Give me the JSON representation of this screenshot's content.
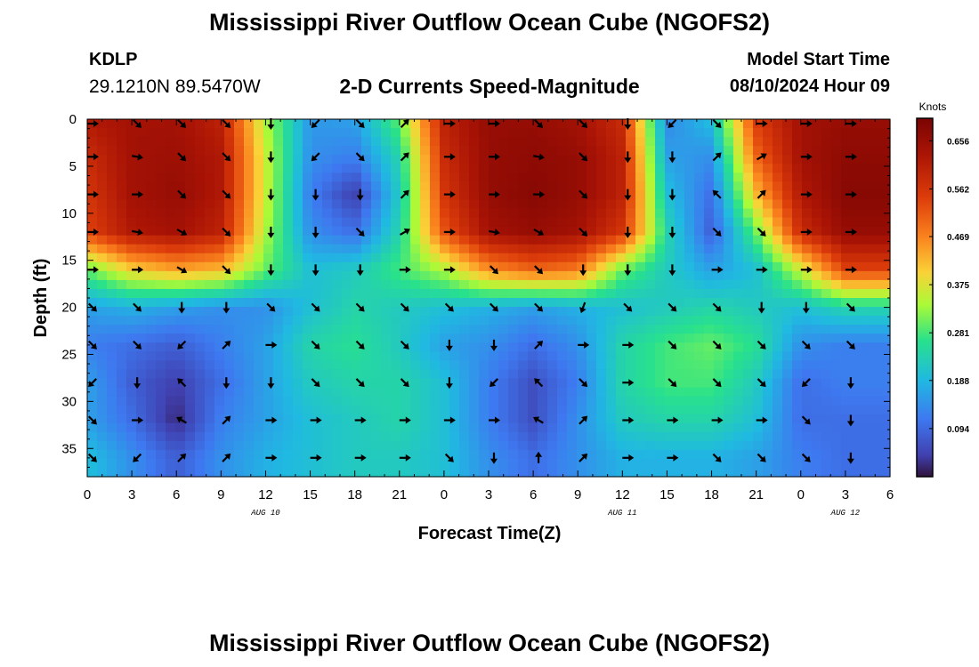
{
  "header": {
    "title": "Mississippi River Outflow Ocean Cube (NGOFS2)",
    "station_id": "KDLP",
    "coords": "29.1210N  89.5470W",
    "subtitle": "2-D Currents Speed-Magnitude",
    "model_start_label": "Model Start Time",
    "model_start_value": "08/10/2024 Hour 09"
  },
  "footer": {
    "title": "Mississippi River Outflow Ocean Cube (NGOFS2)"
  },
  "chart_data": {
    "type": "heatmap",
    "title": "2-D Currents Speed-Magnitude",
    "xlabel": "Forecast Time(Z)",
    "ylabel": "Depth (ft)",
    "x_unit": "hours from 0Z AUG 10",
    "xlim": [
      0,
      54
    ],
    "ylim": [
      0,
      38
    ],
    "y_inverted": true,
    "x_ticks": [
      0,
      3,
      6,
      9,
      12,
      15,
      18,
      21,
      24,
      27,
      30,
      33,
      36,
      39,
      42,
      45,
      48,
      51,
      54
    ],
    "x_tick_labels": [
      "0",
      "3",
      "6",
      "9",
      "12",
      "15",
      "18",
      "21",
      "0",
      "3",
      "6",
      "9",
      "12",
      "15",
      "18",
      "21",
      "0",
      "3",
      "6"
    ],
    "y_ticks": [
      0,
      5,
      10,
      15,
      20,
      25,
      30,
      35
    ],
    "date_labels": [
      {
        "text": "AUG 10",
        "x": 12
      },
      {
        "text": "AUG 11",
        "x": 36
      },
      {
        "text": "AUG 12",
        "x": 51
      }
    ],
    "colorbar": {
      "label": "Knots",
      "ticks": [
        0.094,
        0.188,
        0.281,
        0.375,
        0.469,
        0.562,
        0.656
      ],
      "range": [
        0.0,
        0.7
      ]
    },
    "grid": false,
    "depths": [
      0,
      4,
      8,
      12,
      16,
      20,
      24,
      28,
      32,
      36
    ],
    "times": [
      0,
      3,
      6,
      9,
      12,
      15,
      18,
      21,
      24,
      27,
      30,
      33,
      36,
      39,
      42,
      45,
      48,
      51
    ],
    "speed": [
      [
        0.62,
        0.64,
        0.64,
        0.6,
        0.34,
        0.15,
        0.16,
        0.3,
        0.6,
        0.66,
        0.66,
        0.64,
        0.58,
        0.13,
        0.2,
        0.55,
        0.64,
        0.66
      ],
      [
        0.58,
        0.64,
        0.65,
        0.62,
        0.36,
        0.14,
        0.12,
        0.24,
        0.58,
        0.66,
        0.67,
        0.66,
        0.6,
        0.16,
        0.14,
        0.5,
        0.64,
        0.67
      ],
      [
        0.56,
        0.64,
        0.66,
        0.62,
        0.36,
        0.12,
        0.04,
        0.22,
        0.56,
        0.66,
        0.68,
        0.66,
        0.6,
        0.2,
        0.1,
        0.42,
        0.62,
        0.68
      ],
      [
        0.54,
        0.62,
        0.64,
        0.6,
        0.34,
        0.14,
        0.1,
        0.24,
        0.52,
        0.64,
        0.66,
        0.64,
        0.56,
        0.24,
        0.08,
        0.3,
        0.58,
        0.66
      ],
      [
        0.3,
        0.4,
        0.44,
        0.42,
        0.3,
        0.2,
        0.22,
        0.28,
        0.34,
        0.46,
        0.5,
        0.48,
        0.3,
        0.22,
        0.16,
        0.2,
        0.36,
        0.54
      ],
      [
        0.16,
        0.18,
        0.16,
        0.14,
        0.14,
        0.2,
        0.24,
        0.22,
        0.2,
        0.18,
        0.16,
        0.18,
        0.2,
        0.22,
        0.24,
        0.22,
        0.2,
        0.24
      ],
      [
        0.12,
        0.1,
        0.08,
        0.12,
        0.16,
        0.24,
        0.26,
        0.22,
        0.16,
        0.14,
        0.1,
        0.14,
        0.24,
        0.28,
        0.3,
        0.26,
        0.14,
        0.12
      ],
      [
        0.16,
        0.08,
        0.04,
        0.1,
        0.16,
        0.22,
        0.24,
        0.24,
        0.2,
        0.12,
        0.06,
        0.12,
        0.24,
        0.28,
        0.28,
        0.22,
        0.1,
        0.12
      ],
      [
        0.16,
        0.1,
        0.02,
        0.12,
        0.16,
        0.2,
        0.22,
        0.24,
        0.2,
        0.12,
        0.06,
        0.14,
        0.22,
        0.24,
        0.24,
        0.2,
        0.1,
        0.1
      ],
      [
        0.2,
        0.14,
        0.08,
        0.14,
        0.18,
        0.2,
        0.22,
        0.22,
        0.2,
        0.14,
        0.1,
        0.14,
        0.18,
        0.18,
        0.18,
        0.16,
        0.12,
        0.1
      ]
    ],
    "direction_deg": [
      [
        90,
        135,
        135,
        135,
        180,
        225,
        135,
        45,
        90,
        90,
        135,
        135,
        180,
        225,
        135,
        90,
        90,
        90
      ],
      [
        90,
        100,
        135,
        135,
        180,
        225,
        135,
        45,
        90,
        90,
        100,
        135,
        180,
        180,
        45,
        60,
        90,
        90
      ],
      [
        90,
        90,
        135,
        135,
        180,
        180,
        180,
        45,
        90,
        90,
        90,
        135,
        180,
        180,
        315,
        45,
        90,
        90
      ],
      [
        90,
        100,
        120,
        135,
        180,
        180,
        135,
        60,
        90,
        100,
        120,
        135,
        180,
        180,
        135,
        135,
        90,
        90
      ],
      [
        90,
        90,
        120,
        135,
        180,
        180,
        180,
        90,
        90,
        135,
        135,
        180,
        180,
        180,
        90,
        90,
        90,
        90
      ],
      [
        135,
        135,
        180,
        180,
        135,
        135,
        135,
        135,
        135,
        135,
        135,
        200,
        135,
        135,
        135,
        180,
        180,
        135
      ],
      [
        135,
        135,
        225,
        45,
        90,
        135,
        135,
        135,
        180,
        180,
        45,
        90,
        90,
        135,
        135,
        135,
        135,
        135
      ],
      [
        225,
        180,
        315,
        180,
        180,
        135,
        135,
        135,
        180,
        225,
        315,
        135,
        90,
        135,
        135,
        135,
        225,
        180
      ],
      [
        135,
        90,
        300,
        45,
        90,
        90,
        90,
        90,
        90,
        90,
        300,
        45,
        90,
        90,
        90,
        90,
        135,
        180
      ],
      [
        135,
        225,
        45,
        45,
        90,
        90,
        90,
        90,
        135,
        180,
        0,
        45,
        90,
        90,
        135,
        135,
        135,
        180
      ]
    ]
  }
}
